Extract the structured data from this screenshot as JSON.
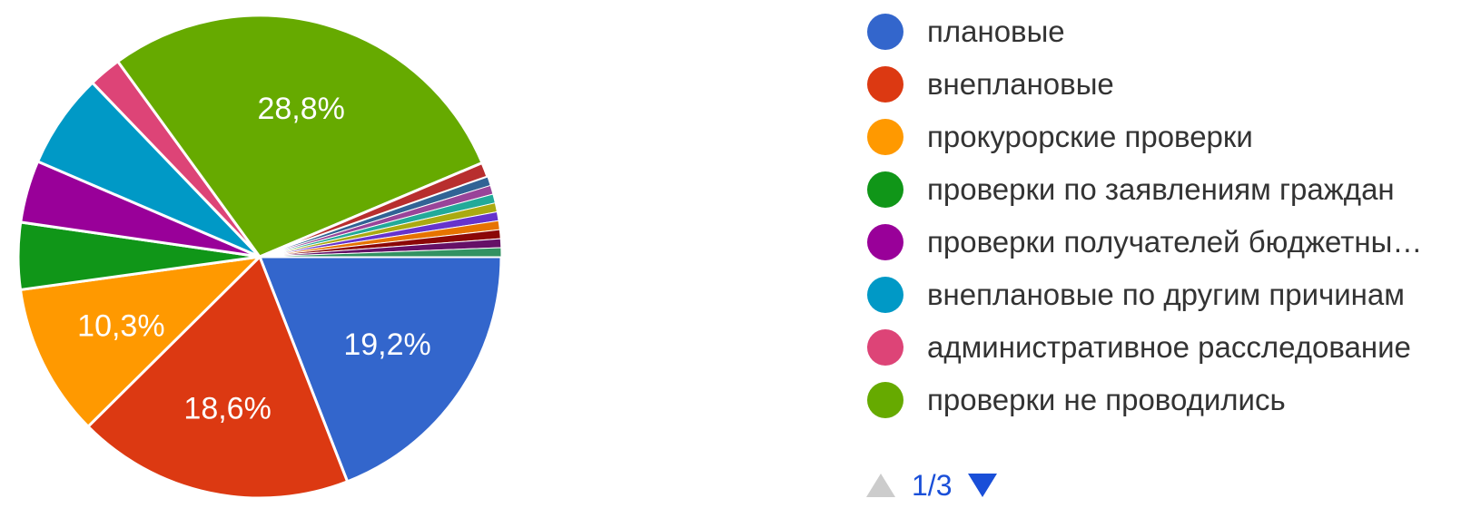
{
  "chart_data": {
    "type": "pie",
    "slices": [
      {
        "label": "плановые",
        "value": 19.2,
        "value_label": "19,2%",
        "color": "#3366cc"
      },
      {
        "label": "внеплановые",
        "value": 18.6,
        "value_label": "18,6%",
        "color": "#dc3912"
      },
      {
        "label": "прокурорские проверки",
        "value": 10.3,
        "value_label": "10,3%",
        "color": "#ff9900"
      },
      {
        "label": "проверки по заявлениям граждан",
        "value": 4.5,
        "value_label": "",
        "color": "#109618"
      },
      {
        "label": "проверки получателей бюджетны…",
        "value": 4.2,
        "value_label": "",
        "color": "#990099"
      },
      {
        "label": "внеплановые по другим причинам",
        "value": 6.4,
        "value_label": "",
        "color": "#0099c6"
      },
      {
        "label": "административное расследование",
        "value": 2.2,
        "value_label": "",
        "color": "#dd4477"
      },
      {
        "label": "проверки не проводились",
        "value": 28.8,
        "value_label": "28,8%",
        "color": "#66aa00"
      },
      {
        "label": "",
        "value": 1.0,
        "value_label": "",
        "color": "#b82e2e"
      },
      {
        "label": "",
        "value": 0.6,
        "value_label": "",
        "color": "#316395"
      },
      {
        "label": "",
        "value": 0.6,
        "value_label": "",
        "color": "#994499"
      },
      {
        "label": "",
        "value": 0.6,
        "value_label": "",
        "color": "#22aa99"
      },
      {
        "label": "",
        "value": 0.6,
        "value_label": "",
        "color": "#aaaa11"
      },
      {
        "label": "",
        "value": 0.6,
        "value_label": "",
        "color": "#6633cc"
      },
      {
        "label": "",
        "value": 0.6,
        "value_label": "",
        "color": "#e67300"
      },
      {
        "label": "",
        "value": 0.6,
        "value_label": "",
        "color": "#8b0707"
      },
      {
        "label": "",
        "value": 0.6,
        "value_label": "",
        "color": "#651067"
      },
      {
        "label": "",
        "value": 0.6,
        "value_label": "",
        "color": "#329262"
      }
    ],
    "legend_position": "right"
  },
  "legend": {
    "items": [
      {
        "label": "плановые",
        "color": "#3366cc"
      },
      {
        "label": "внеплановые",
        "color": "#dc3912"
      },
      {
        "label": "прокурорские проверки",
        "color": "#ff9900"
      },
      {
        "label": "проверки по заявлениям граждан",
        "color": "#109618"
      },
      {
        "label": "проверки получателей бюджетны…",
        "color": "#990099"
      },
      {
        "label": "внеплановые по другим причинам",
        "color": "#0099c6"
      },
      {
        "label": "административное расследование",
        "color": "#dd4477"
      },
      {
        "label": "проверки не проводились",
        "color": "#66aa00"
      }
    ]
  },
  "pager": {
    "text": "1/3",
    "prev_icon": "triangle-up-icon",
    "next_icon": "triangle-down-icon",
    "prev_color": "#cccccc",
    "next_color": "#1a4fd8"
  }
}
